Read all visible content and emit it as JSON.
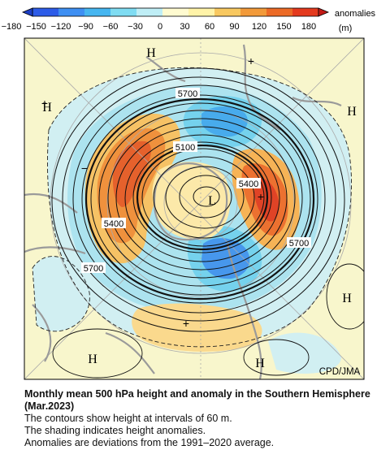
{
  "colorbar": {
    "ticks": [
      "−180",
      "−150",
      "−120",
      "−90",
      "−60",
      "−30",
      "0",
      "30",
      "60",
      "90",
      "120",
      "150",
      "180"
    ],
    "unit_label": "anomalies",
    "unit": "(m)",
    "colors": [
      "#2d5ce8",
      "#3e8ff2",
      "#46b6f0",
      "#7fdcf2",
      "#bfeef6",
      "#fffbd0",
      "#fff3a8",
      "#f8c860",
      "#f29a3a",
      "#ec6a26",
      "#e43a1e"
    ]
  },
  "map": {
    "contour_labels": [
      "5700",
      "5100",
      "5400",
      "5400",
      "5700",
      "5700"
    ],
    "high_markers": [
      "H",
      "H",
      "H",
      "H",
      "H",
      "H"
    ],
    "low_markers": [
      "L"
    ],
    "plus_markers": [
      "+",
      "+",
      "+",
      "+"
    ],
    "minus_markers": [
      "−",
      "−"
    ],
    "credit": "CPD/JMA",
    "colors": {
      "ocean": "#f8f6cc",
      "land_border": "#9a9a9a"
    }
  },
  "caption": {
    "title": "Monthly mean 500 hPa height and anomaly in the Southern Hemisphere (Mar.2023)",
    "line1": "The contours show height at intervals of 60 m.",
    "line2": "The shading indicates height anomalies.",
    "line3": "Anomalies are deviations from the 1991–2020 average."
  }
}
